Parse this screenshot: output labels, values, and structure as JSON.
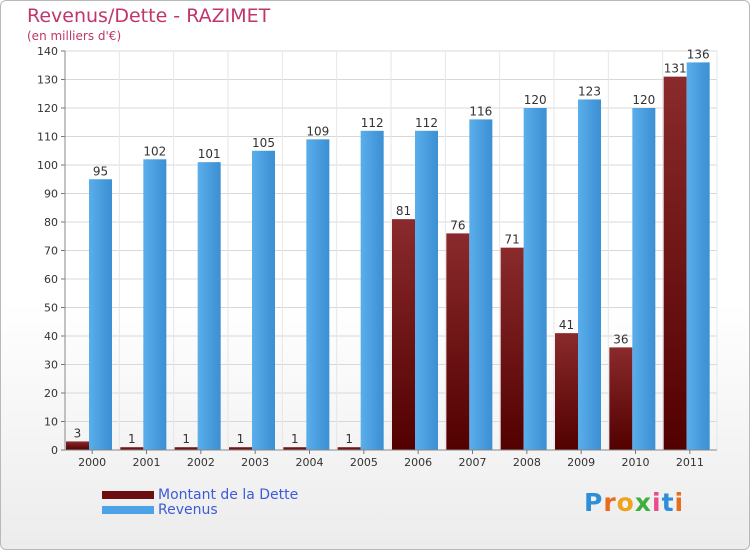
{
  "header": {
    "title": "Revenus/Dette - RAZIMET",
    "subtitle": "(en milliers d'€)"
  },
  "legend": {
    "debt_label": "Montant de la Dette",
    "revenue_label": "Revenus",
    "debt_color": "#6b0f12",
    "revenue_color": "#4da3e6"
  },
  "brand": {
    "letters": [
      "P",
      "r",
      "o",
      "x",
      "i",
      "t",
      "i"
    ],
    "colors": [
      "#2e8fd8",
      "#e86c1f",
      "#f0a21a",
      "#3fae3f",
      "#e84c8a",
      "#2e8fd8",
      "#e86c1f"
    ]
  },
  "chart_data": {
    "type": "bar",
    "categories": [
      "2000",
      "2001",
      "2002",
      "2003",
      "2004",
      "2005",
      "2006",
      "2007",
      "2008",
      "2009",
      "2010",
      "2011"
    ],
    "series": [
      {
        "name": "Montant de la Dette",
        "values": [
          3,
          1,
          1,
          1,
          1,
          1,
          81,
          76,
          71,
          41,
          36,
          131
        ]
      },
      {
        "name": "Revenus",
        "values": [
          95,
          102,
          101,
          105,
          109,
          112,
          112,
          116,
          120,
          123,
          120,
          136
        ]
      }
    ],
    "ylim": [
      0,
      140
    ],
    "yticks": [
      0,
      10,
      20,
      30,
      40,
      50,
      60,
      70,
      80,
      90,
      100,
      110,
      120,
      130,
      140
    ],
    "grid": true,
    "legend_position": "bottom-left"
  }
}
